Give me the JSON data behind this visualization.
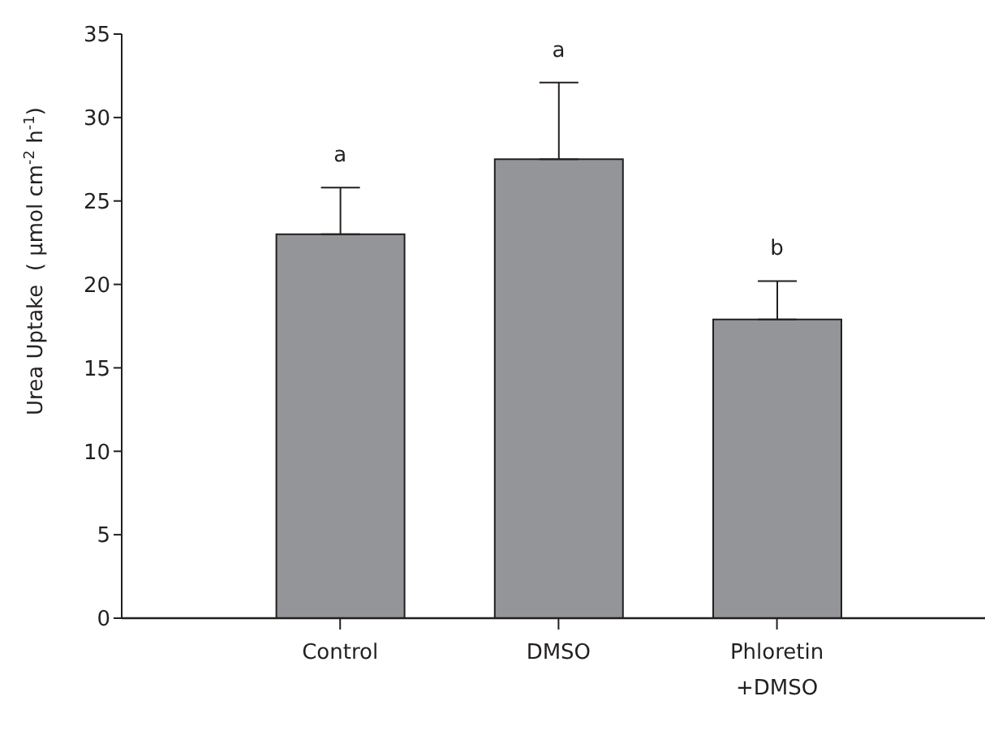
{
  "chart_data": {
    "type": "bar",
    "ylabel": "Urea Uptake  ( µmol cm$^{-2}$ h$^{-1}$)",
    "categories": [
      "Control",
      "DMSO",
      "Phloretin +DMSO"
    ],
    "values": [
      23.0,
      27.5,
      17.9
    ],
    "errors": [
      [
        23.0,
        25.8
      ],
      [
        27.5,
        32.1
      ],
      [
        17.9,
        20.2
      ]
    ],
    "color": "#939598",
    "ylim": [
      0,
      35
    ],
    "yticks": [
      0,
      5,
      10,
      15,
      20,
      25,
      30,
      35
    ],
    "grid": false,
    "annotations": [
      "a",
      "a",
      "b"
    ]
  }
}
